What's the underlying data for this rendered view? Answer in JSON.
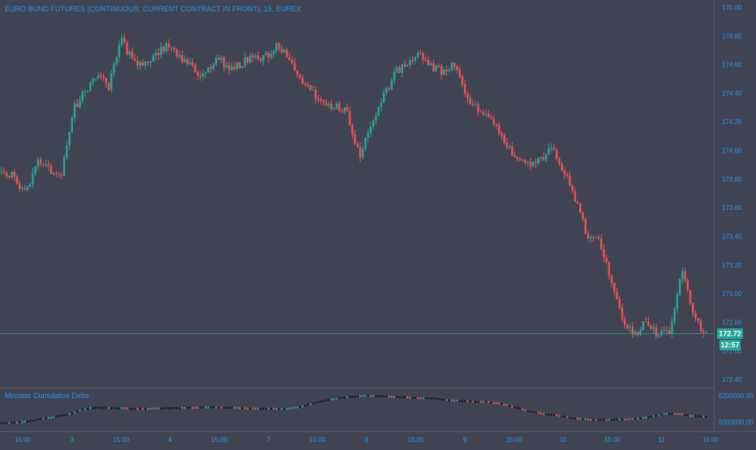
{
  "chart_title": "EURO BUND FUTURES (CONTINUOUS: CURRENT CONTRACT IN FRONT), 15, EUREX",
  "indicator_title": "Monster Cumulative Delta",
  "price_axis": {
    "ticks": [
      "175.00",
      "174.80",
      "174.60",
      "174.40",
      "174.20",
      "174.00",
      "173.80",
      "173.60",
      "173.40",
      "173.20",
      "173.00",
      "172.80",
      "172.60",
      "172.40"
    ],
    "ylim": [
      172.4,
      175.0
    ]
  },
  "indicator_axis": {
    "ticks": [
      "5200000.00",
      "5000000.00"
    ],
    "ylim": [
      4960000,
      5230000
    ]
  },
  "time_axis": {
    "labels": [
      "15:00",
      "3",
      "15:00",
      "4",
      "15:00",
      "7",
      "15:00",
      "8",
      "15:00",
      "9",
      "15:00",
      "10",
      "15:00",
      "11",
      "15:00"
    ]
  },
  "last_price": {
    "value": 172.72,
    "label": "172.72",
    "countdown": "12:57"
  },
  "colors": {
    "background": "#404452",
    "up": "#26a69a",
    "down": "#ef5350",
    "axis_text": "#2196f3",
    "title": "#2196f3",
    "label_text": "#b2b5be",
    "last_price_bg": "#26a69a"
  },
  "chart_data": {
    "type": "candlestick",
    "title": "EURO BUND FUTURES (CONTINUOUS: CURRENT CONTRACT IN FRONT), 15, EUREX",
    "price_range": [
      172.4,
      175.0
    ],
    "x": [
      "15:00",
      "3",
      "15:00",
      "4",
      "15:00",
      "7",
      "15:00",
      "8",
      "15:00",
      "9",
      "15:00",
      "10",
      "15:00",
      "11",
      "15:00"
    ],
    "price_path": [
      173.85,
      173.82,
      173.7,
      173.92,
      173.86,
      173.83,
      174.28,
      174.42,
      174.52,
      174.45,
      174.78,
      174.62,
      174.6,
      174.68,
      174.73,
      174.65,
      174.58,
      174.52,
      174.66,
      174.57,
      174.6,
      174.67,
      174.65,
      174.72,
      174.66,
      174.48,
      174.42,
      174.32,
      174.3,
      174.26,
      173.95,
      174.2,
      174.38,
      174.54,
      174.62,
      174.68,
      174.58,
      174.55,
      174.6,
      174.35,
      174.28,
      174.25,
      174.1,
      173.92,
      173.9,
      173.92,
      174.02,
      173.88,
      173.68,
      173.42,
      173.38,
      173.1,
      172.82,
      172.7,
      172.82,
      172.7,
      172.75,
      173.15,
      172.82,
      172.72
    ],
    "indicator": {
      "name": "Monster Cumulative Delta",
      "range": [
        4960000,
        5230000
      ],
      "path": [
        4990000,
        4995000,
        5005000,
        5025000,
        5040000,
        5060000,
        5095000,
        5110000,
        5105000,
        5103000,
        5100000,
        5100000,
        5102000,
        5105000,
        5108000,
        5110000,
        5112000,
        5108000,
        5104000,
        5102000,
        5100000,
        5098000,
        5115000,
        5140000,
        5165000,
        5180000,
        5192000,
        5200000,
        5195000,
        5190000,
        5185000,
        5180000,
        5178000,
        5165000,
        5158000,
        5155000,
        5150000,
        5135000,
        5110000,
        5080000,
        5060000,
        5050000,
        5030000,
        5020000,
        5015000,
        5018000,
        5020000,
        5025000,
        5040000,
        5062000,
        5060000,
        5045000,
        5040000
      ]
    },
    "last_value": 172.72
  }
}
